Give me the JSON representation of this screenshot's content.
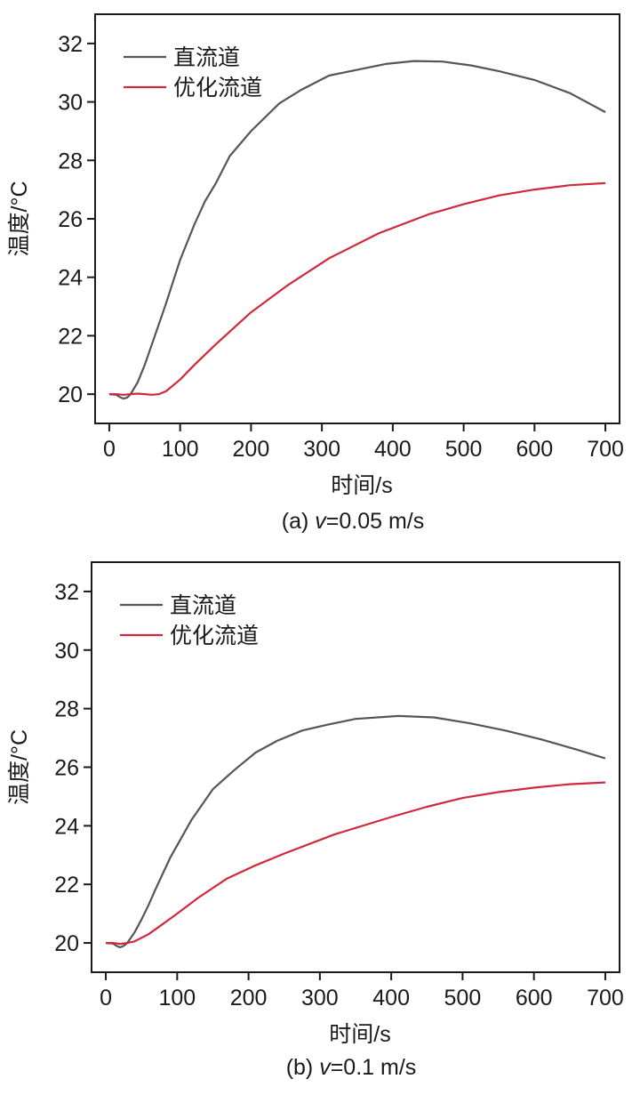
{
  "chart_data": [
    {
      "type": "line",
      "caption": {
        "prefix": "(a) ",
        "var": "v",
        "suffix": "=0.05 m/s"
      },
      "xlabel": "时间/s",
      "ylabel": "温度/°C",
      "xlim": [
        -20,
        720
      ],
      "ylim": [
        19,
        33
      ],
      "xticks": [
        0,
        100,
        200,
        300,
        400,
        500,
        600,
        700
      ],
      "yticks": [
        20,
        22,
        24,
        26,
        28,
        30,
        32
      ],
      "legend_position": "top-left",
      "series": [
        {
          "name": "直流道",
          "color": "#555555",
          "x": [
            0,
            10,
            15,
            20,
            25,
            30,
            40,
            50,
            60,
            70,
            80,
            100,
            120,
            135,
            150,
            170,
            200,
            240,
            270,
            310,
            350,
            390,
            430,
            470,
            510,
            550,
            600,
            650,
            700
          ],
          "y": [
            20.0,
            19.98,
            19.9,
            19.85,
            19.88,
            20.0,
            20.4,
            21.0,
            21.7,
            22.4,
            23.1,
            24.6,
            25.8,
            26.6,
            27.2,
            28.15,
            29.0,
            29.95,
            30.4,
            30.9,
            31.1,
            31.3,
            31.4,
            31.38,
            31.25,
            31.05,
            30.75,
            30.3,
            29.65
          ]
        },
        {
          "name": "优化流道",
          "color": "#d0283c",
          "x": [
            0,
            10,
            20,
            30,
            40,
            50,
            60,
            70,
            80,
            100,
            120,
            150,
            200,
            250,
            310,
            380,
            450,
            500,
            550,
            600,
            650,
            700
          ],
          "y": [
            20.0,
            20.0,
            19.98,
            20.0,
            20.02,
            20.0,
            19.98,
            20.0,
            20.1,
            20.5,
            21.0,
            21.7,
            22.8,
            23.7,
            24.65,
            25.5,
            26.15,
            26.5,
            26.8,
            27.0,
            27.15,
            27.22
          ]
        }
      ]
    },
    {
      "type": "line",
      "caption": {
        "prefix": "(b) ",
        "var": "v",
        "suffix": "=0.1 m/s"
      },
      "xlabel": "时间/s",
      "ylabel": "温度/°C",
      "xlim": [
        -20,
        720
      ],
      "ylim": [
        19,
        33
      ],
      "xticks": [
        0,
        100,
        200,
        300,
        400,
        500,
        600,
        700
      ],
      "yticks": [
        20,
        22,
        24,
        26,
        28,
        30,
        32
      ],
      "legend_position": "top-left",
      "series": [
        {
          "name": "直流道",
          "color": "#555555",
          "x": [
            0,
            10,
            15,
            20,
            25,
            30,
            40,
            50,
            60,
            70,
            90,
            120,
            150,
            180,
            210,
            240,
            275,
            310,
            350,
            410,
            460,
            510,
            560,
            610,
            660,
            700
          ],
          "y": [
            20.0,
            19.98,
            19.9,
            19.85,
            19.9,
            20.0,
            20.35,
            20.8,
            21.3,
            21.85,
            22.9,
            24.2,
            25.25,
            25.9,
            26.5,
            26.9,
            27.25,
            27.45,
            27.65,
            27.75,
            27.7,
            27.5,
            27.25,
            26.95,
            26.6,
            26.3
          ]
        },
        {
          "name": "优化流道",
          "color": "#d0283c",
          "x": [
            0,
            10,
            20,
            30,
            40,
            60,
            80,
            100,
            130,
            170,
            210,
            250,
            320,
            400,
            450,
            500,
            550,
            600,
            650,
            700
          ],
          "y": [
            20.0,
            20.0,
            19.97,
            20.0,
            20.05,
            20.3,
            20.65,
            21.0,
            21.55,
            22.2,
            22.65,
            23.05,
            23.7,
            24.3,
            24.65,
            24.95,
            25.15,
            25.3,
            25.42,
            25.48
          ]
        }
      ]
    }
  ]
}
